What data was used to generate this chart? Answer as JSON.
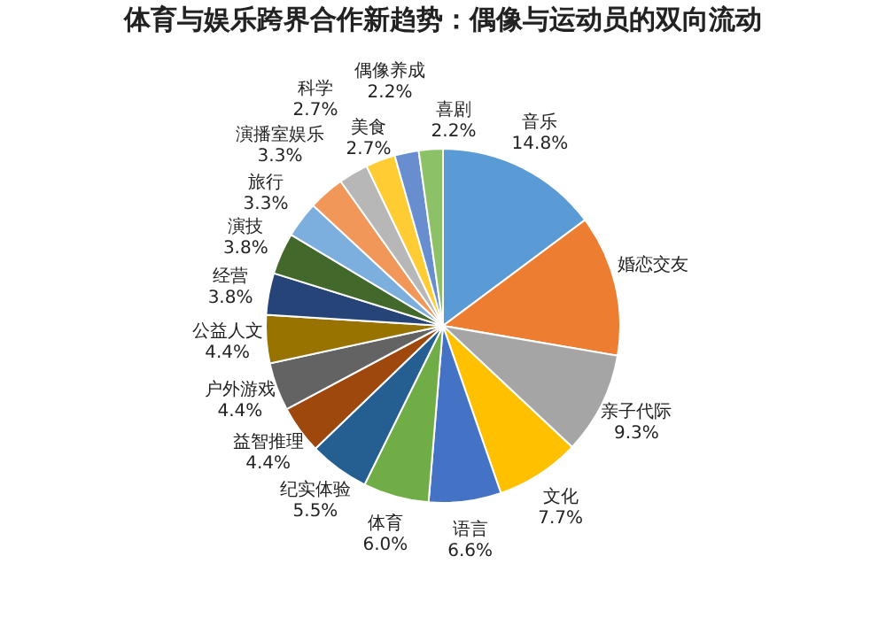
{
  "chart_data": {
    "type": "pie",
    "title": "体育与娱乐跨界合作新趋势：偶像与运动员的双向流动",
    "categories": [
      "音乐",
      "婚恋交友",
      "亲子代际",
      "文化",
      "语言",
      "体育",
      "纪实体验",
      "益智推理",
      "户外游戏",
      "公益人文",
      "经营",
      "演技",
      "旅行",
      "演播室娱乐",
      "科学",
      "美食",
      "偶像养成",
      "喜剧"
    ],
    "values": [
      14.8,
      12.9,
      9.3,
      7.7,
      6.6,
      6.0,
      5.5,
      4.4,
      4.4,
      4.4,
      3.8,
      3.8,
      3.3,
      3.3,
      2.7,
      2.7,
      2.2,
      2.2
    ],
    "value_labels": [
      "14.8%",
      null,
      "9.3%",
      "7.7%",
      "6.6%",
      "6.0%",
      "5.5%",
      "4.4%",
      "4.4%",
      "4.4%",
      "3.8%",
      "3.8%",
      "3.3%",
      "3.3%",
      "2.7%",
      "2.7%",
      "2.2%",
      "2.2%"
    ],
    "colors": [
      "#5b9bd5",
      "#ed7d31",
      "#a5a5a5",
      "#ffc000",
      "#4472c4",
      "#70ad47",
      "#255e91",
      "#9e480e",
      "#636363",
      "#997300",
      "#264478",
      "#43682b",
      "#7cafdd",
      "#f1975a",
      "#b7b7b7",
      "#ffcd33",
      "#698ed0",
      "#8cc168"
    ]
  }
}
